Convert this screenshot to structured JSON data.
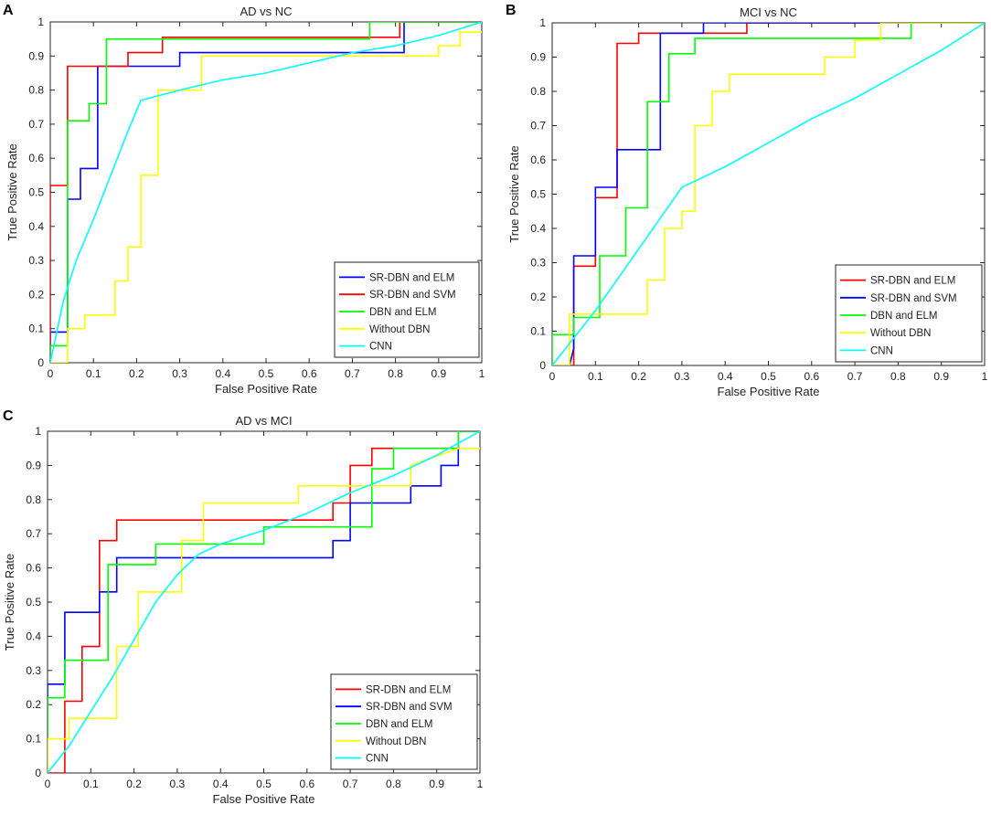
{
  "panels": [
    {
      "letter": "A",
      "chart_data": {
        "type": "line",
        "title": "AD vs NC",
        "xlabel": "False Positive Rate",
        "ylabel": "True Positive Rate",
        "xlim": [
          0,
          1
        ],
        "ylim": [
          0,
          1
        ],
        "xticks": [
          0,
          0.1,
          0.2,
          0.3,
          0.4,
          0.5,
          0.6,
          0.7,
          0.8,
          0.9,
          1
        ],
        "yticks": [
          0,
          0.1,
          0.2,
          0.3,
          0.4,
          0.5,
          0.6,
          0.7,
          0.8,
          0.9,
          1
        ],
        "xtick_labels": [
          "0",
          "0.1",
          "0.2",
          "0.3",
          "0.4",
          "0.5",
          "0.6",
          "0.7",
          "0.8",
          "0.9",
          "1"
        ],
        "ytick_labels": [
          "0",
          "0.1",
          "0.2",
          "0.3",
          "0.4",
          "0.5",
          "0.6",
          "0.7",
          "0.8",
          "0.9",
          "1"
        ],
        "legend_position": "bottom-right",
        "series": [
          {
            "name": "SR-DBN and ELM",
            "color": "#0000ff",
            "x": [
              0,
              0,
              0.04,
              0.04,
              0.07,
              0.07,
              0.11,
              0.11,
              0.26,
              0.26,
              0.3,
              0.3,
              0.82,
              0.82,
              1
            ],
            "y": [
              0,
              0.09,
              0.09,
              0.48,
              0.48,
              0.57,
              0.57,
              0.87,
              0.87,
              0.87,
              0.87,
              0.91,
              0.91,
              1,
              1
            ]
          },
          {
            "name": "SR-DBN and SVM",
            "color": "#ff0000",
            "x": [
              0,
              0,
              0.04,
              0.04,
              0.18,
              0.18,
              0.26,
              0.26,
              0.81,
              0.81,
              1
            ],
            "y": [
              0,
              0.52,
              0.52,
              0.87,
              0.87,
              0.91,
              0.91,
              0.955,
              0.955,
              1,
              1
            ]
          },
          {
            "name": "DBN and ELM",
            "color": "#00ff00",
            "x": [
              0,
              0,
              0.04,
              0.04,
              0.09,
              0.09,
              0.13,
              0.13,
              0.74,
              0.74,
              1
            ],
            "y": [
              0,
              0.05,
              0.05,
              0.71,
              0.71,
              0.76,
              0.76,
              0.95,
              0.95,
              1,
              1
            ]
          },
          {
            "name": "Without DBN",
            "color": "#ffff00",
            "x": [
              0,
              0.04,
              0.04,
              0.08,
              0.08,
              0.15,
              0.15,
              0.18,
              0.18,
              0.21,
              0.21,
              0.25,
              0.25,
              0.35,
              0.35,
              0.9,
              0.9,
              0.95,
              0.95,
              1
            ],
            "y": [
              0,
              0,
              0.1,
              0.1,
              0.14,
              0.14,
              0.24,
              0.24,
              0.34,
              0.34,
              0.55,
              0.55,
              0.8,
              0.8,
              0.9,
              0.9,
              0.93,
              0.93,
              0.97,
              0.97
            ]
          },
          {
            "name": "CNN",
            "color": "#00ffff",
            "x": [
              0,
              0.03,
              0.06,
              0.1,
              0.14,
              0.18,
              0.21,
              0.3,
              0.4,
              0.5,
              0.6,
              0.7,
              0.8,
              0.9,
              1
            ],
            "y": [
              0,
              0.18,
              0.3,
              0.42,
              0.55,
              0.68,
              0.77,
              0.8,
              0.83,
              0.85,
              0.88,
              0.91,
              0.93,
              0.96,
              1
            ]
          }
        ]
      }
    },
    {
      "letter": "B",
      "chart_data": {
        "type": "line",
        "title": "MCI vs NC",
        "xlabel": "False Positive Rate",
        "ylabel": "True Positive Rate",
        "xlim": [
          0,
          1
        ],
        "ylim": [
          0,
          1
        ],
        "xticks": [
          0,
          0.1,
          0.2,
          0.3,
          0.4,
          0.5,
          0.6,
          0.7,
          0.8,
          0.9,
          1
        ],
        "yticks": [
          0,
          0.1,
          0.2,
          0.3,
          0.4,
          0.5,
          0.6,
          0.7,
          0.8,
          0.9,
          1
        ],
        "xtick_labels": [
          "0",
          "0.1",
          "0.2",
          "0.3",
          "0.4",
          "0.5",
          "0.6",
          "0.7",
          "0.8",
          "0.9",
          "1"
        ],
        "ytick_labels": [
          "0",
          "0.1",
          "0.2",
          "0.3",
          "0.4",
          "0.5",
          "0.6",
          "0.7",
          "0.8",
          "0.9",
          "1"
        ],
        "legend_position": "bottom-right",
        "series": [
          {
            "name": "SR-DBN and ELM",
            "color": "#ff0000",
            "x": [
              0,
              0.05,
              0.05,
              0.1,
              0.1,
              0.15,
              0.15,
              0.2,
              0.2,
              0.45,
              0.45,
              1
            ],
            "y": [
              0,
              0,
              0.29,
              0.29,
              0.49,
              0.49,
              0.94,
              0.94,
              0.97,
              0.97,
              1,
              1
            ]
          },
          {
            "name": "SR-DBN and SVM",
            "color": "#0000ff",
            "x": [
              0,
              0.04,
              0.05,
              0.05,
              0.1,
              0.1,
              0.15,
              0.15,
              0.25,
              0.25,
              0.35,
              0.35,
              1
            ],
            "y": [
              0,
              0,
              0.05,
              0.32,
              0.32,
              0.52,
              0.52,
              0.63,
              0.63,
              0.97,
              0.97,
              1,
              1
            ]
          },
          {
            "name": "DBN and ELM",
            "color": "#00ff00",
            "x": [
              0,
              0,
              0.05,
              0.05,
              0.11,
              0.11,
              0.17,
              0.17,
              0.22,
              0.22,
              0.27,
              0.27,
              0.33,
              0.33,
              0.83,
              0.83,
              1
            ],
            "y": [
              0,
              0.09,
              0.09,
              0.14,
              0.14,
              0.32,
              0.32,
              0.46,
              0.46,
              0.77,
              0.77,
              0.91,
              0.91,
              0.955,
              0.955,
              1,
              1
            ]
          },
          {
            "name": "Without DBN",
            "color": "#ffff00",
            "x": [
              0,
              0.04,
              0.04,
              0.22,
              0.22,
              0.26,
              0.26,
              0.3,
              0.3,
              0.33,
              0.33,
              0.37,
              0.37,
              0.41,
              0.41,
              0.63,
              0.63,
              0.7,
              0.7,
              0.76,
              0.76,
              1
            ],
            "y": [
              0,
              0,
              0.15,
              0.15,
              0.25,
              0.25,
              0.4,
              0.4,
              0.45,
              0.45,
              0.7,
              0.7,
              0.8,
              0.8,
              0.85,
              0.85,
              0.9,
              0.9,
              0.95,
              0.95,
              1,
              1
            ]
          },
          {
            "name": "CNN",
            "color": "#00ffff",
            "x": [
              0,
              0.05,
              0.1,
              0.15,
              0.2,
              0.25,
              0.3,
              0.4,
              0.5,
              0.6,
              0.7,
              0.8,
              0.9,
              0.95,
              1
            ],
            "y": [
              0,
              0.08,
              0.16,
              0.25,
              0.34,
              0.43,
              0.52,
              0.58,
              0.65,
              0.72,
              0.78,
              0.85,
              0.92,
              0.96,
              1
            ]
          }
        ]
      }
    },
    {
      "letter": "C",
      "chart_data": {
        "type": "line",
        "title": "AD vs MCI",
        "xlabel": "False Positive Rate",
        "ylabel": "True Positive Rate",
        "xlim": [
          0,
          1
        ],
        "ylim": [
          0,
          1
        ],
        "xticks": [
          0,
          0.1,
          0.2,
          0.3,
          0.4,
          0.5,
          0.6,
          0.7,
          0.8,
          0.9,
          1
        ],
        "yticks": [
          0,
          0.1,
          0.2,
          0.3,
          0.4,
          0.5,
          0.6,
          0.7,
          0.8,
          0.9,
          1
        ],
        "xtick_labels": [
          "0",
          "0.1",
          "0.2",
          "0.3",
          "0.4",
          "0.5",
          "0.6",
          "0.7",
          "0.8",
          "0.9",
          "1"
        ],
        "ytick_labels": [
          "0",
          "0.1",
          "0.2",
          "0.3",
          "0.4",
          "0.5",
          "0.6",
          "0.7",
          "0.8",
          "0.9",
          "1"
        ],
        "legend_position": "bottom-right",
        "series": [
          {
            "name": "SR-DBN and ELM",
            "color": "#ff0000",
            "x": [
              0,
              0.04,
              0.04,
              0.08,
              0.08,
              0.12,
              0.12,
              0.16,
              0.16,
              0.66,
              0.66,
              0.7,
              0.7,
              0.75,
              0.75,
              0.95,
              0.95,
              1
            ],
            "y": [
              0,
              0,
              0.21,
              0.21,
              0.37,
              0.37,
              0.68,
              0.68,
              0.74,
              0.74,
              0.79,
              0.79,
              0.9,
              0.9,
              0.95,
              0.95,
              1,
              1
            ]
          },
          {
            "name": "SR-DBN and SVM",
            "color": "#0000ff",
            "x": [
              0,
              0,
              0.04,
              0.04,
              0.12,
              0.12,
              0.16,
              0.16,
              0.66,
              0.66,
              0.7,
              0.7,
              0.84,
              0.84,
              0.91,
              0.91,
              0.95,
              0.95,
              1
            ],
            "y": [
              0,
              0.26,
              0.26,
              0.47,
              0.47,
              0.53,
              0.53,
              0.63,
              0.63,
              0.68,
              0.68,
              0.79,
              0.79,
              0.84,
              0.84,
              0.9,
              0.9,
              1,
              1
            ]
          },
          {
            "name": "DBN and ELM",
            "color": "#00ff00",
            "x": [
              0,
              0,
              0.04,
              0.04,
              0.14,
              0.14,
              0.2,
              0.2,
              0.25,
              0.25,
              0.5,
              0.5,
              0.75,
              0.75,
              0.8,
              0.8,
              0.95,
              0.95,
              1
            ],
            "y": [
              0,
              0.22,
              0.22,
              0.33,
              0.33,
              0.61,
              0.61,
              0.61,
              0.61,
              0.67,
              0.67,
              0.72,
              0.72,
              0.89,
              0.89,
              0.95,
              0.95,
              1,
              1
            ]
          },
          {
            "name": "Without DBN",
            "color": "#ffff00",
            "x": [
              0,
              0,
              0.05,
              0.05,
              0.16,
              0.16,
              0.21,
              0.21,
              0.31,
              0.31,
              0.36,
              0.36,
              0.58,
              0.58,
              0.84,
              0.84,
              0.95,
              1
            ],
            "y": [
              0,
              0.1,
              0.1,
              0.16,
              0.16,
              0.37,
              0.37,
              0.53,
              0.53,
              0.68,
              0.68,
              0.79,
              0.79,
              0.84,
              0.84,
              0.9,
              0.95,
              0.95
            ]
          },
          {
            "name": "CNN",
            "color": "#00ffff",
            "x": [
              0,
              0.05,
              0.1,
              0.15,
              0.2,
              0.25,
              0.3,
              0.35,
              0.4,
              0.5,
              0.6,
              0.7,
              0.8,
              0.9,
              1
            ],
            "y": [
              0,
              0.08,
              0.18,
              0.28,
              0.39,
              0.5,
              0.58,
              0.64,
              0.67,
              0.71,
              0.76,
              0.82,
              0.87,
              0.93,
              1
            ]
          }
        ]
      }
    }
  ]
}
